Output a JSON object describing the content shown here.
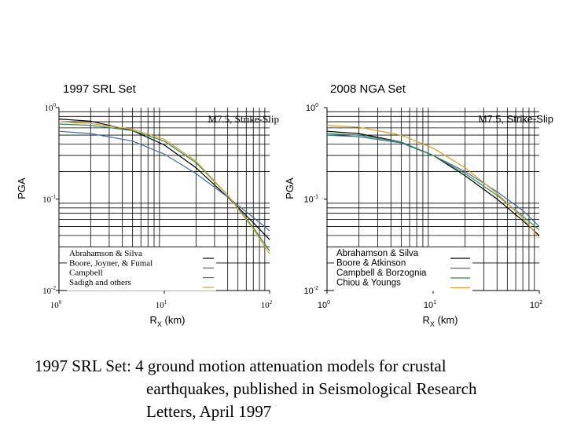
{
  "caption": {
    "line1": "1997 SRL Set: 4 ground motion attenuation models for crustal",
    "line2": "earthquakes, published in Seismological Research",
    "line3": "Letters, April 1997"
  },
  "chart_data": [
    {
      "type": "line",
      "title": "1997 SRL Set",
      "annotation": "M7.5, Strike-Slip",
      "xlabel": "R",
      "xlabel_sub": "X",
      "xlabel_unit": "(km)",
      "ylabel": "PGA",
      "xscale": "log",
      "yscale": "log",
      "xlim": [
        1,
        100
      ],
      "ylim": [
        0.01,
        1
      ],
      "x_ticks": [
        {
          "value": 1,
          "base": "10",
          "exp": "0"
        },
        {
          "value": 10,
          "base": "10",
          "exp": "1"
        },
        {
          "value": 100,
          "base": "10",
          "exp": "2"
        }
      ],
      "y_ticks": [
        {
          "value": 1,
          "base": "10",
          "exp": "0"
        },
        {
          "value": 0.1,
          "base": "10",
          "exp": "-1"
        },
        {
          "value": 0.01,
          "base": "10",
          "exp": "-2"
        }
      ],
      "grid": true,
      "legend_position": "bottom-left",
      "series": [
        {
          "name": "Abrahamson & Silva",
          "color": "#000000",
          "x": [
            1,
            2,
            5,
            10,
            20,
            40,
            70,
            100
          ],
          "y": [
            0.75,
            0.71,
            0.56,
            0.39,
            0.22,
            0.105,
            0.055,
            0.036
          ]
        },
        {
          "name": "Boore, Joyner, & Fumal",
          "color": "#3b6ea8",
          "x": [
            1,
            2,
            5,
            10,
            20,
            40,
            70,
            100
          ],
          "y": [
            0.55,
            0.52,
            0.43,
            0.31,
            0.19,
            0.105,
            0.063,
            0.045
          ]
        },
        {
          "name": "Campbell",
          "color": "#2e8b57",
          "x": [
            1,
            2,
            5,
            10,
            20,
            40,
            70,
            100
          ],
          "y": [
            0.66,
            0.64,
            0.56,
            0.43,
            0.25,
            0.11,
            0.049,
            0.027
          ]
        },
        {
          "name": "Sadigh and others",
          "color": "#e0a020",
          "x": [
            1,
            2,
            5,
            10,
            20,
            40,
            70,
            100
          ],
          "y": [
            0.7,
            0.67,
            0.58,
            0.45,
            0.26,
            0.11,
            0.047,
            0.025
          ]
        }
      ]
    },
    {
      "type": "line",
      "title": "2008 NGA Set",
      "annotation": "M7.5, Strike-Slip",
      "xlabel": "R",
      "xlabel_sub": "X",
      "xlabel_unit": "(km)",
      "ylabel": "PGA",
      "xscale": "log",
      "yscale": "log",
      "xlim": [
        1,
        100
      ],
      "ylim": [
        0.01,
        1
      ],
      "x_ticks": [
        {
          "value": 1,
          "base": "10",
          "exp": "0"
        },
        {
          "value": 10,
          "base": "10",
          "exp": "1"
        },
        {
          "value": 100,
          "base": "10",
          "exp": "2"
        }
      ],
      "y_ticks": [
        {
          "value": 1,
          "base": "10",
          "exp": "0"
        },
        {
          "value": 0.1,
          "base": "10",
          "exp": "-1"
        },
        {
          "value": 0.01,
          "base": "10",
          "exp": "-2"
        }
      ],
      "grid": true,
      "legend_position": "bottom-left",
      "series": [
        {
          "name": "Abrahamson & Silva",
          "color": "#000000",
          "x": [
            1,
            2,
            5,
            10,
            20,
            40,
            70,
            100
          ],
          "y": [
            0.55,
            0.52,
            0.42,
            0.3,
            0.18,
            0.1,
            0.058,
            0.04
          ]
        },
        {
          "name": "Boore & Atkinson",
          "color": "#3b6ea8",
          "x": [
            1,
            2,
            5,
            10,
            20,
            40,
            70,
            100
          ],
          "y": [
            0.5,
            0.48,
            0.41,
            0.3,
            0.2,
            0.12,
            0.075,
            0.05
          ]
        },
        {
          "name": "Campbell & Borzognia",
          "color": "#2e8b57",
          "x": [
            1,
            2,
            5,
            10,
            20,
            40,
            70,
            100
          ],
          "y": [
            0.52,
            0.5,
            0.42,
            0.3,
            0.19,
            0.11,
            0.065,
            0.046
          ]
        },
        {
          "name": "Chiou & Youngs",
          "color": "#e0a020",
          "x": [
            1,
            2,
            5,
            10,
            20,
            40,
            70,
            100
          ],
          "y": [
            0.64,
            0.61,
            0.5,
            0.36,
            0.22,
            0.115,
            0.062,
            0.038
          ]
        }
      ]
    }
  ]
}
